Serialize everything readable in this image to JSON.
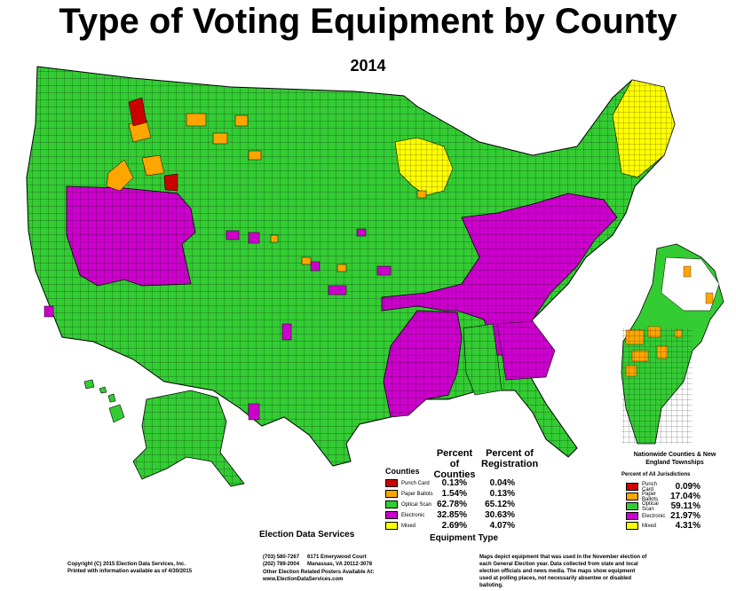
{
  "title": "Type of Voting Equipment by County",
  "year": "2014",
  "colors": {
    "punch_card": "#cc0000",
    "paper_ballots": "#ffa500",
    "optical_scan": "#33cc33",
    "electronic": "#cc00cc",
    "mixed": "#ffff00",
    "border": "#000000",
    "unreported": "#ffffff"
  },
  "legend_main": {
    "heading": "Counties",
    "col1_header": "Percent of Counties",
    "col2_header": "Percent of Registration",
    "rows": [
      {
        "key": "punch_card",
        "label": "Punch Card",
        "counties": "0.13%",
        "registration": "0.04%"
      },
      {
        "key": "paper_ballots",
        "label": "Paper Ballots",
        "counties": "1.54%",
        "registration": "0.13%"
      },
      {
        "key": "optical_scan",
        "label": "Optical Scan",
        "counties": "62.78%",
        "registration": "65.12%"
      },
      {
        "key": "electronic",
        "label": "Electronic",
        "counties": "32.85%",
        "registration": "30.63%"
      },
      {
        "key": "mixed",
        "label": "Mixed",
        "counties": "2.69%",
        "registration": "4.07%"
      }
    ],
    "footer": "Equipment Type"
  },
  "legend_ne": {
    "heading": "Nationwide Counties & New England Townships",
    "subheading": "Percent of All Jurisdictions",
    "rows": [
      {
        "key": "punch_card",
        "label": "Punch Card",
        "value": "0.09%"
      },
      {
        "key": "paper_ballots",
        "label": "Paper Ballots",
        "value": "17.04%"
      },
      {
        "key": "optical_scan",
        "label": "Optical Scan",
        "value": "59.11%"
      },
      {
        "key": "electronic",
        "label": "Electronic",
        "value": "21.97%"
      },
      {
        "key": "mixed",
        "label": "Mixed",
        "value": "4.31%"
      }
    ]
  },
  "footer": {
    "logo_text": "Election Data Services",
    "copyright": "Copyright (C) 2015 Election Data Services, Inc.",
    "printed": "Printed with information available as of 4/30/2015",
    "phone1": "(703) 580-7267",
    "phone2": "(202) 789-2004",
    "address1": "6171 Emerywood Court",
    "address2": "Manassas, VA 20112-3078",
    "other": "Other Election Related Posters Available At:",
    "website": "www.ElectionDataServices.com",
    "note": "Maps depict equipment that was used in the November election of each General Election year. Data collected from state and local election officials and news media. The maps show equipment used at polling places, not necessarily absentee or disabled balloting."
  }
}
